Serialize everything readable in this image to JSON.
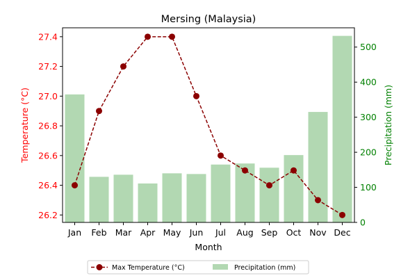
{
  "chart_data": {
    "type": "bar+line",
    "title": "Mersing (Malaysia)",
    "xlabel": "Month",
    "ylabel_left": "Temperature (°C)",
    "ylabel_right": "Precipitation (mm)",
    "categories": [
      "Jan",
      "Feb",
      "Mar",
      "Apr",
      "May",
      "Jun",
      "Jul",
      "Aug",
      "Sep",
      "Oct",
      "Nov",
      "Dec"
    ],
    "y_left_lim": [
      26.15,
      27.46
    ],
    "y_left_ticks": [
      26.2,
      26.4,
      26.6,
      26.8,
      27.0,
      27.2,
      27.4
    ],
    "y_right_lim": [
      0,
      555
    ],
    "y_right_ticks": [
      0,
      100,
      200,
      300,
      400,
      500
    ],
    "series": [
      {
        "name": "Max Temperature (°C)",
        "kind": "line",
        "axis": "left",
        "values": [
          26.4,
          26.9,
          27.2,
          27.4,
          27.4,
          27.0,
          26.6,
          26.5,
          26.4,
          26.5,
          26.3,
          26.2
        ],
        "color": "#8b0000"
      },
      {
        "name": "Precipitation (mm)",
        "kind": "bar",
        "axis": "right",
        "values": [
          365,
          130,
          136,
          111,
          140,
          138,
          165,
          168,
          156,
          192,
          315,
          532
        ],
        "color": "#b2d8b2"
      }
    ],
    "grid": false,
    "legend_position": "bottom-center",
    "left_axis_color": "#ff0000",
    "right_axis_color": "#008000"
  }
}
